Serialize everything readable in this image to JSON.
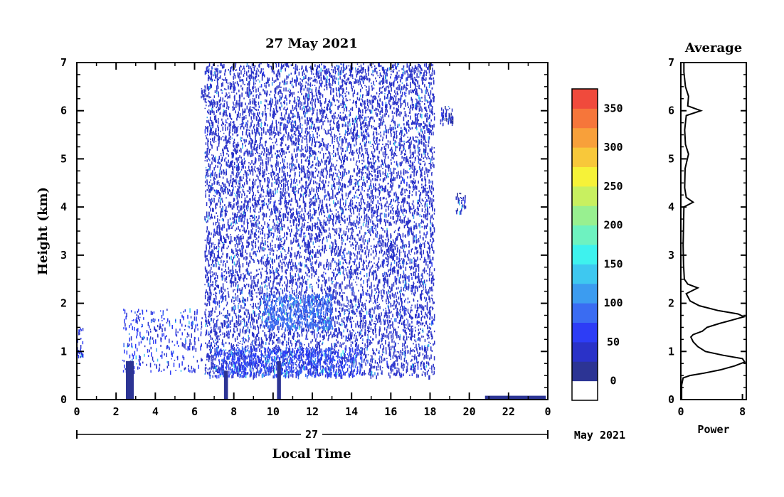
{
  "chart_data": [
    {
      "type": "heatmap",
      "title": "27 May 2021",
      "xlabel": "Local Time",
      "ylabel": "Height (km)",
      "xlim": [
        0,
        24
      ],
      "ylim": [
        0,
        7
      ],
      "xticks": [
        "0",
        "2",
        "4",
        "6",
        "8",
        "10",
        "12",
        "14",
        "16",
        "18",
        "20",
        "22",
        "0"
      ],
      "yticks": [
        "0",
        "1",
        "2",
        "3",
        "4",
        "5",
        "6",
        "7"
      ],
      "date_bar": {
        "day": "27",
        "month_year": "May 2021"
      },
      "colorbar": {
        "ticks": [
          "0",
          "50",
          "100",
          "150",
          "200",
          "250",
          "300",
          "350"
        ],
        "tick_values": [
          0,
          50,
          100,
          150,
          200,
          250,
          300,
          350
        ],
        "range": [
          -25,
          375
        ],
        "colors": [
          "#ffffff",
          "#2c3494",
          "#2a32c8",
          "#2d3df6",
          "#3a6cf2",
          "#3c9cf0",
          "#3ec8f0",
          "#3ef2ee",
          "#6ef2c0",
          "#98f090",
          "#c8f060",
          "#f6f238",
          "#f8c83a",
          "#f8a03a",
          "#f6763a",
          "#f04a3c"
        ]
      },
      "regions": [
        {
          "x": [
            6.5,
            18.2
          ],
          "y": [
            0.5,
            7.0
          ],
          "density": 0.42,
          "level": 25
        },
        {
          "x": [
            9.5,
            13.0
          ],
          "y": [
            1.5,
            2.2
          ],
          "density": 0.7,
          "level": 75
        },
        {
          "x": [
            7.0,
            14.5
          ],
          "y": [
            0.5,
            1.1
          ],
          "density": 0.55,
          "level": 60
        },
        {
          "x": [
            2.3,
            6.4
          ],
          "y": [
            0.6,
            1.9
          ],
          "density": 0.18,
          "level": 40
        },
        {
          "x": [
            0.0,
            0.3
          ],
          "y": [
            0.9,
            1.5
          ],
          "density": 0.5,
          "level": 40
        },
        {
          "x": [
            18.5,
            19.2
          ],
          "y": [
            5.7,
            6.1
          ],
          "density": 0.6,
          "level": 20
        },
        {
          "x": [
            19.3,
            19.8
          ],
          "y": [
            3.9,
            4.3
          ],
          "density": 0.6,
          "level": 20
        },
        {
          "x": [
            6.3,
            6.6
          ],
          "y": [
            6.3,
            6.5
          ],
          "density": 0.8,
          "level": 20
        }
      ],
      "surface_echoes": [
        {
          "x": [
            2.5,
            2.9
          ],
          "y": [
            0,
            0.8
          ]
        },
        {
          "x": [
            7.5,
            7.7
          ],
          "y": [
            0,
            0.6
          ]
        },
        {
          "x": [
            10.2,
            10.4
          ],
          "y": [
            0,
            0.8
          ]
        },
        {
          "x": [
            20.8,
            23.9
          ],
          "y": [
            0,
            0.08
          ]
        }
      ]
    },
    {
      "type": "line",
      "title": "Average",
      "xlabel": "Power",
      "xlim": [
        0,
        8.5
      ],
      "ylim": [
        0,
        7
      ],
      "xticks": [
        "0",
        "8"
      ],
      "yticks": [
        "0",
        "1",
        "2",
        "3",
        "4",
        "5",
        "6",
        "7"
      ],
      "profile": [
        [
          0.0,
          0.1
        ],
        [
          0.3,
          0.1
        ],
        [
          0.45,
          0.3
        ],
        [
          0.5,
          1.2
        ],
        [
          0.55,
          3.0
        ],
        [
          0.62,
          5.2
        ],
        [
          0.7,
          7.0
        ],
        [
          0.78,
          8.3
        ],
        [
          0.85,
          8.0
        ],
        [
          0.92,
          5.5
        ],
        [
          1.0,
          3.2
        ],
        [
          1.1,
          2.2
        ],
        [
          1.2,
          1.6
        ],
        [
          1.3,
          1.3
        ],
        [
          1.35,
          1.6
        ],
        [
          1.42,
          2.8
        ],
        [
          1.5,
          3.4
        ],
        [
          1.58,
          5.0
        ],
        [
          1.65,
          6.6
        ],
        [
          1.72,
          8.2
        ],
        [
          1.78,
          7.4
        ],
        [
          1.85,
          4.8
        ],
        [
          1.95,
          2.4
        ],
        [
          2.05,
          1.2
        ],
        [
          2.2,
          0.7
        ],
        [
          2.32,
          2.2
        ],
        [
          2.4,
          0.9
        ],
        [
          2.5,
          0.45
        ],
        [
          2.8,
          0.35
        ],
        [
          3.2,
          0.3
        ],
        [
          3.6,
          0.35
        ],
        [
          4.0,
          0.4
        ],
        [
          4.1,
          1.6
        ],
        [
          4.2,
          0.7
        ],
        [
          4.4,
          0.5
        ],
        [
          4.8,
          0.55
        ],
        [
          5.1,
          1.0
        ],
        [
          5.3,
          0.6
        ],
        [
          5.6,
          0.5
        ],
        [
          5.9,
          0.7
        ],
        [
          6.0,
          2.6
        ],
        [
          6.1,
          0.9
        ],
        [
          6.3,
          1.0
        ],
        [
          6.5,
          0.6
        ],
        [
          6.8,
          0.4
        ],
        [
          7.0,
          0.4
        ]
      ]
    }
  ]
}
